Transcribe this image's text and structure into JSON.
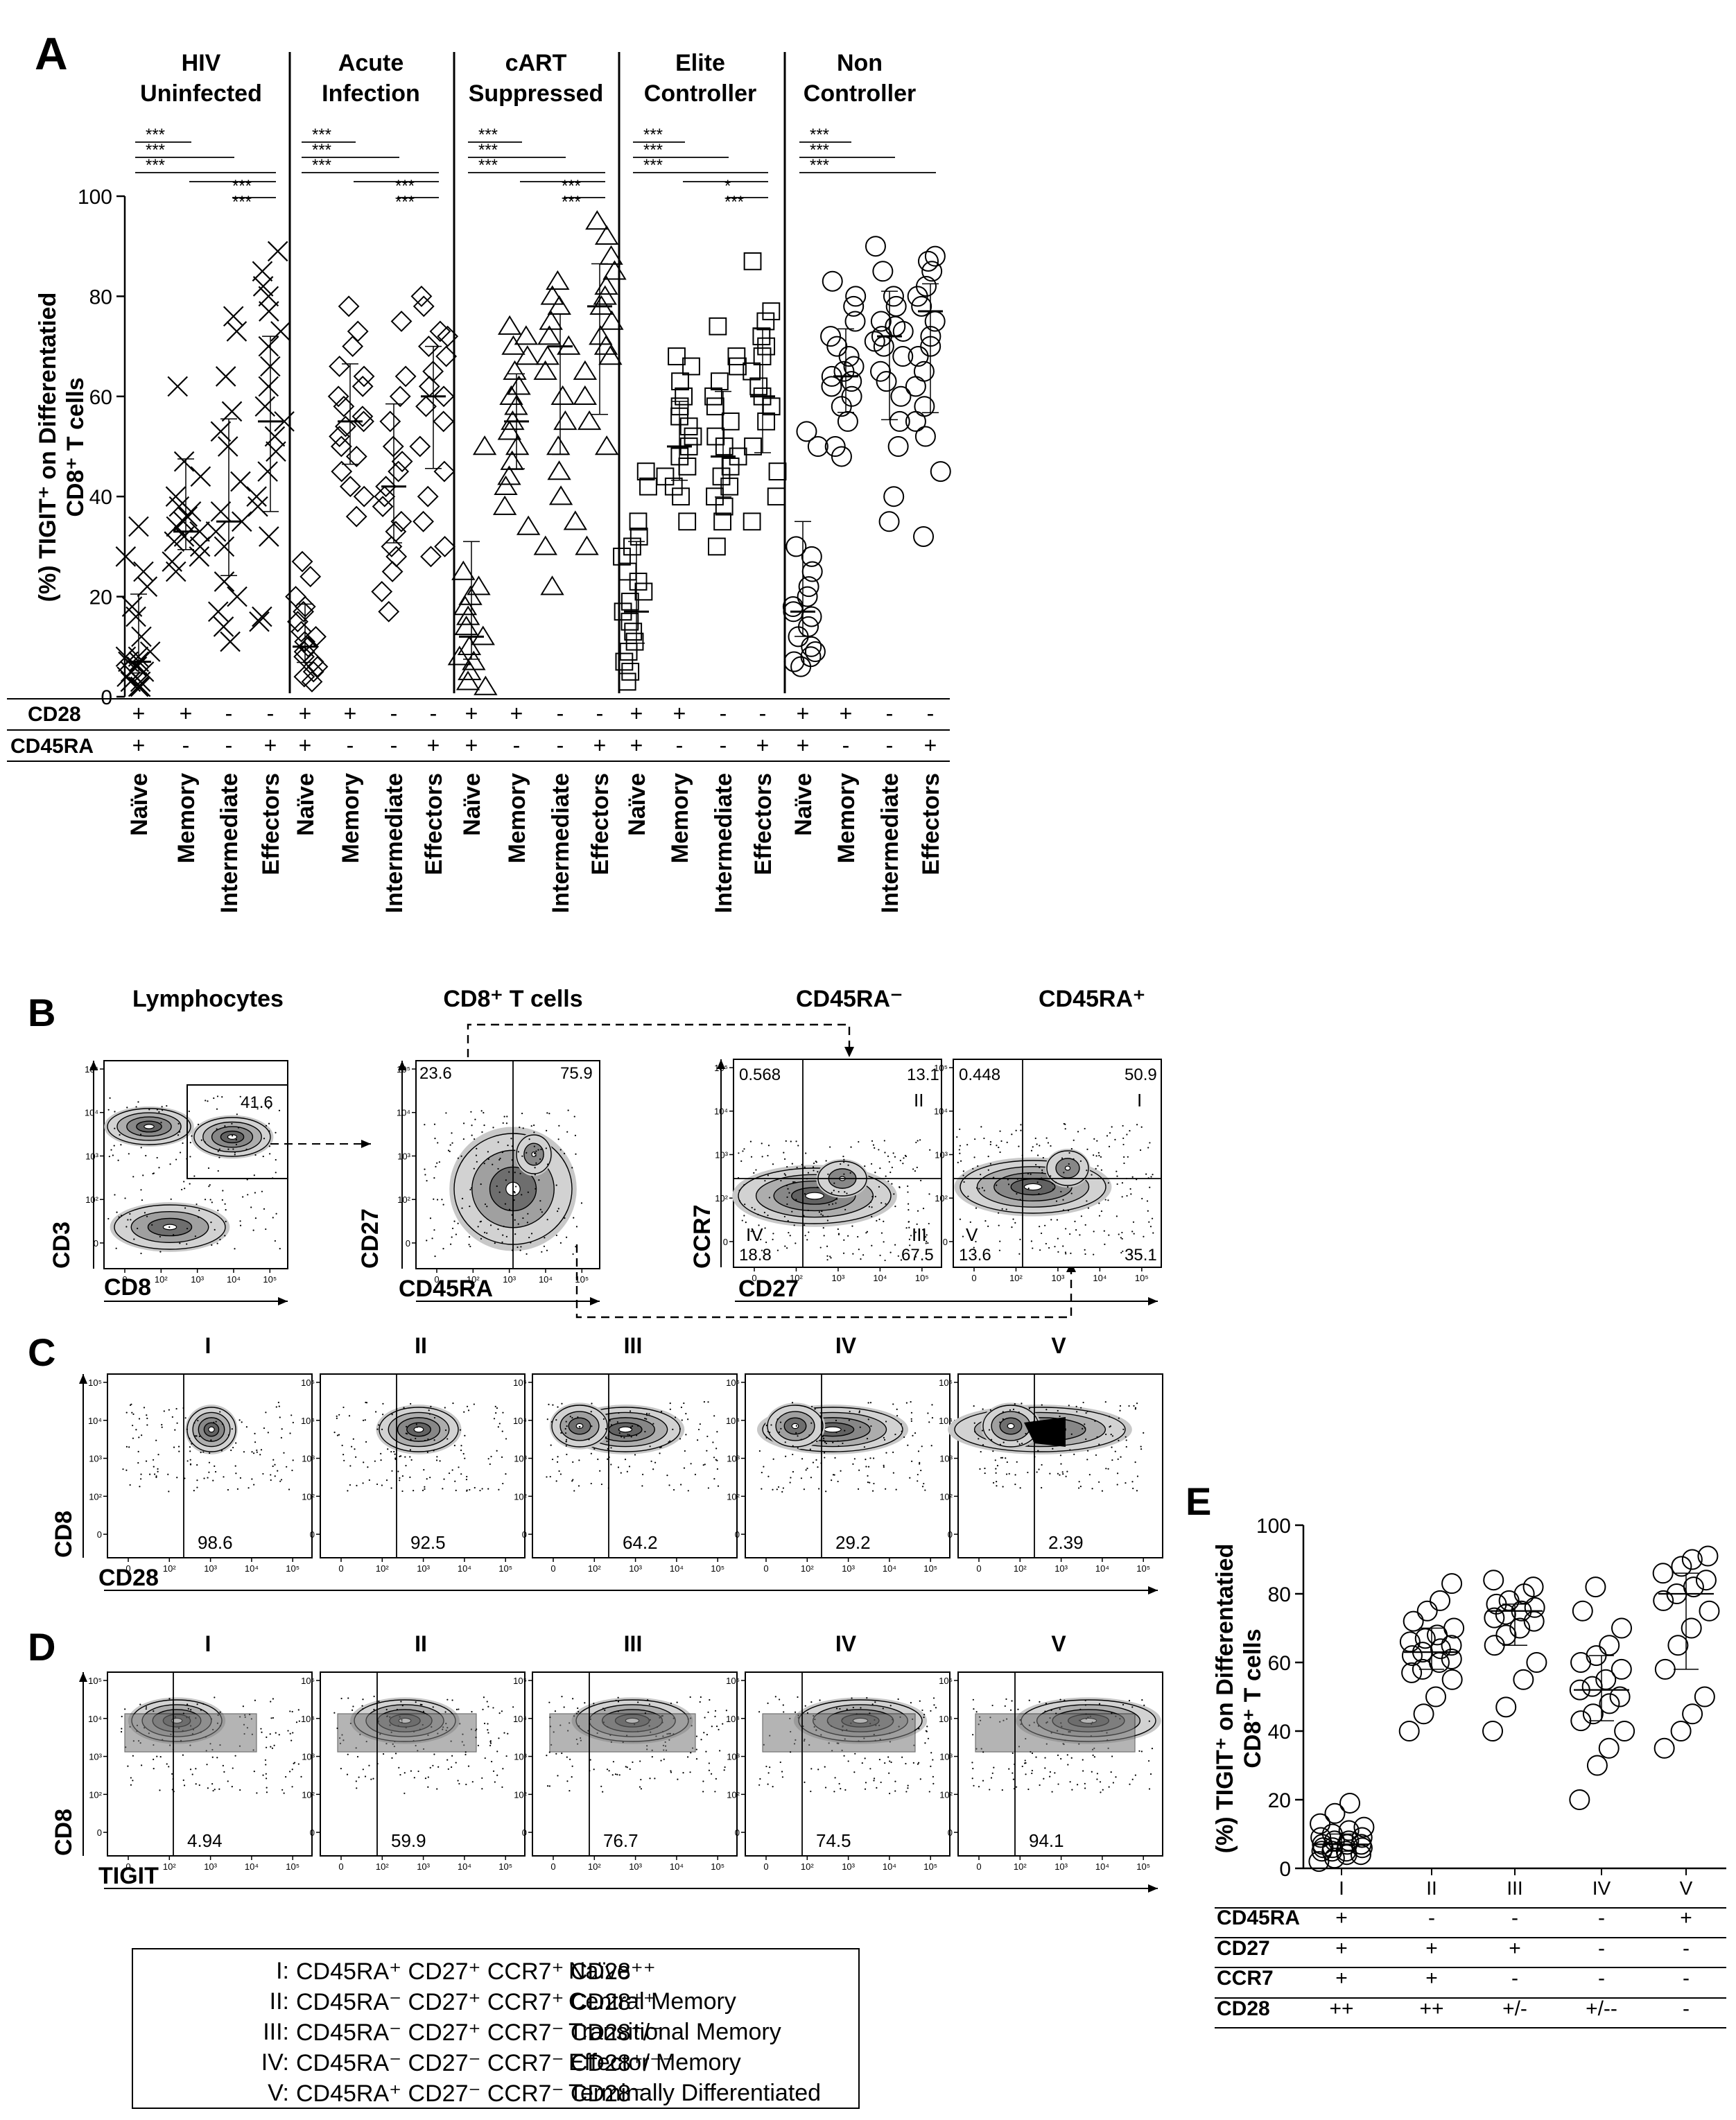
{
  "panel_labels": {
    "A": "A",
    "B": "B",
    "C": "C",
    "D": "D",
    "E": "E"
  },
  "panelA": {
    "ylabel_line1": "(%) TIGIT⁺ on Differentatied",
    "ylabel_line2": "CD8⁺ T cells",
    "yticks": [
      "0",
      "20",
      "40",
      "60",
      "80",
      "100"
    ],
    "groups": [
      {
        "title1": "HIV",
        "title2": "Uninfected",
        "marker": "x"
      },
      {
        "title1": "Acute",
        "title2": "Infection",
        "marker": "diamond"
      },
      {
        "title1": "cART",
        "title2": "Suppressed",
        "marker": "triangle"
      },
      {
        "title1": "Elite",
        "title2": "Controller",
        "marker": "square"
      },
      {
        "title1": "Non",
        "title2": "Controller",
        "marker": "circle"
      }
    ],
    "row_labels": [
      "CD28",
      "CD45RA"
    ],
    "cd28_signs": [
      "+",
      "+",
      "-",
      "-"
    ],
    "cd45ra_signs": [
      "+",
      "-",
      "-",
      "+"
    ],
    "subset_labels": [
      "Naïve",
      "Memory",
      "Intermediate",
      "Effectors"
    ],
    "sig_mark": "***",
    "sig_mark_single": "*"
  },
  "chart_data": [
    {
      "type": "scatter",
      "title": "",
      "ylabel": "(%) TIGIT⁺ on Differentatied CD8⁺ T cells",
      "ylim": [
        0,
        100
      ],
      "categories": [
        "Naïve",
        "Memory",
        "Intermediate",
        "Effectors"
      ],
      "series": [
        {
          "name": "HIV Uninfected",
          "medians": [
            7,
            33,
            35,
            55
          ],
          "values": [
            [
              2,
              3,
              4,
              5,
              6,
              7,
              8,
              9,
              12,
              16,
              18,
              22,
              25,
              28,
              34,
              3,
              5,
              7,
              2,
              8
            ],
            [
              25,
              27,
              28,
              30,
              31,
              32,
              33,
              34,
              35,
              36,
              37,
              38,
              40,
              44,
              47,
              62
            ],
            [
              11,
              14,
              17,
              20,
              23,
              30,
              33,
              35,
              37,
              43,
              50,
              53,
              57,
              64,
              73,
              76
            ],
            [
              15,
              16,
              32,
              38,
              40,
              45,
              49,
              52,
              55,
              58,
              62,
              66,
              70,
              73,
              77,
              80,
              82,
              85,
              89
            ]
          ]
        },
        {
          "name": "Acute Infection",
          "medians": [
            10,
            55,
            42,
            60
          ],
          "values": [
            [
              3,
              4,
              5,
              6,
              7,
              8,
              9,
              10,
              11,
              12,
              13,
              15,
              17,
              18,
              20,
              24,
              27
            ],
            [
              36,
              40,
              42,
              45,
              48,
              50,
              52,
              54,
              55,
              56,
              58,
              60,
              62,
              64,
              66,
              70,
              73,
              78
            ],
            [
              17,
              21,
              25,
              28,
              30,
              33,
              35,
              38,
              40,
              42,
              45,
              47,
              50,
              55,
              60,
              64,
              75
            ],
            [
              28,
              30,
              35,
              40,
              45,
              50,
              55,
              58,
              60,
              62,
              65,
              68,
              70,
              72,
              73,
              78,
              80
            ]
          ]
        },
        {
          "name": "cART Suppressed",
          "medians": [
            12,
            55,
            70,
            78
          ],
          "values": [
            [
              2,
              3,
              5,
              7,
              8,
              10,
              12,
              14,
              16,
              18,
              20,
              22,
              25,
              50
            ],
            [
              34,
              38,
              42,
              44,
              47,
              50,
              53,
              55,
              58,
              60,
              62,
              65,
              68,
              70,
              72,
              74
            ],
            [
              22,
              30,
              35,
              40,
              45,
              50,
              55,
              60,
              65,
              68,
              70,
              72,
              75,
              78,
              80,
              83
            ],
            [
              30,
              50,
              55,
              60,
              65,
              68,
              70,
              72,
              75,
              78,
              80,
              82,
              85,
              88,
              92,
              95
            ]
          ]
        },
        {
          "name": "Elite Controller",
          "medians": [
            17,
            50,
            48,
            60
          ],
          "values": [
            [
              3,
              5,
              7,
              9,
              11,
              13,
              15,
              17,
              19,
              21,
              23,
              25,
              28,
              30,
              32,
              35,
              42,
              45
            ],
            [
              35,
              40,
              42,
              44,
              46,
              48,
              50,
              52,
              54,
              56,
              58,
              60,
              63,
              66,
              68
            ],
            [
              30,
              35,
              38,
              40,
              42,
              44,
              46,
              48,
              50,
              52,
              55,
              58,
              60,
              63,
              66,
              68,
              74
            ],
            [
              35,
              40,
              45,
              50,
              55,
              58,
              60,
              62,
              65,
              68,
              70,
              72,
              75,
              77,
              87
            ]
          ]
        },
        {
          "name": "Non Controller",
          "medians": [
            17,
            64,
            72,
            77
          ],
          "values": [
            [
              6,
              7,
              8,
              9,
              10,
              12,
              14,
              16,
              17,
              18,
              20,
              22,
              25,
              28,
              30,
              50,
              53
            ],
            [
              48,
              50,
              55,
              58,
              60,
              62,
              63,
              64,
              65,
              66,
              68,
              70,
              72,
              75,
              78,
              80,
              83
            ],
            [
              35,
              40,
              50,
              55,
              60,
              63,
              65,
              68,
              70,
              71,
              72,
              73,
              74,
              75,
              78,
              80,
              85,
              90
            ],
            [
              32,
              45,
              52,
              55,
              58,
              62,
              65,
              68,
              70,
              72,
              75,
              78,
              80,
              82,
              85,
              87,
              88
            ]
          ]
        }
      ]
    },
    {
      "type": "scatter",
      "title": "",
      "ylabel": "(%) TIGIT⁺ on Differentatied CD8⁺ T cells",
      "ylim": [
        0,
        100
      ],
      "categories": [
        "I",
        "II",
        "III",
        "IV",
        "V"
      ],
      "medians": [
        7,
        63,
        75,
        52,
        80
      ],
      "series": [
        {
          "name": "I",
          "values": [
            2,
            3,
            4,
            4,
            5,
            5,
            5,
            6,
            6,
            6,
            7,
            7,
            7,
            8,
            8,
            9,
            9,
            10,
            11,
            12,
            13,
            16,
            19
          ]
        },
        {
          "name": "II",
          "values": [
            40,
            45,
            50,
            55,
            57,
            58,
            60,
            61,
            62,
            63,
            64,
            65,
            66,
            67,
            68,
            70,
            72,
            75,
            78,
            83
          ]
        },
        {
          "name": "III",
          "values": [
            40,
            47,
            55,
            60,
            65,
            68,
            70,
            72,
            73,
            74,
            75,
            76,
            77,
            78,
            80,
            82,
            84
          ]
        },
        {
          "name": "IV",
          "values": [
            20,
            30,
            35,
            40,
            43,
            45,
            48,
            50,
            52,
            53,
            55,
            58,
            60,
            62,
            65,
            70,
            75,
            82
          ]
        },
        {
          "name": "V",
          "values": [
            35,
            40,
            45,
            50,
            58,
            65,
            70,
            75,
            78,
            80,
            82,
            84,
            86,
            88,
            90,
            91
          ]
        }
      ]
    }
  ],
  "panelB": {
    "plot_titles": [
      "Lymphocytes",
      "CD8⁺ T cells",
      "CD45RA⁻",
      "CD45RA⁺"
    ],
    "p1": {
      "ylabel": "CD3",
      "xlabel": "CD8",
      "gate": "41.6"
    },
    "p2": {
      "ylabel": "CD27",
      "xlabel": "CD45RA",
      "q_ul": "23.6",
      "q_ur": "75.9"
    },
    "p3": {
      "ylabel": "CCR7",
      "q_ul": "0.568",
      "q_ur": "13.1",
      "q_ll": "18.8",
      "q_lr": "67.5",
      "r_ur": "II",
      "r_ll": "IV",
      "r_lr": "III"
    },
    "p4": {
      "q_ul": "0.448",
      "q_ur": "50.9",
      "q_ll": "13.6",
      "q_lr": "35.1",
      "r_ur": "I",
      "r_ll": "V"
    },
    "xlabel_shared": "CD27"
  },
  "panelC": {
    "titles": [
      "I",
      "II",
      "III",
      "IV",
      "V"
    ],
    "values": [
      "98.6",
      "92.5",
      "64.2",
      "29.2",
      "2.39"
    ],
    "ylabel": "CD8",
    "xlabel": "CD28"
  },
  "panelD": {
    "titles": [
      "I",
      "II",
      "III",
      "IV",
      "V"
    ],
    "values": [
      "4.94",
      "59.9",
      "76.7",
      "74.5",
      "94.1"
    ],
    "ylabel": "CD8",
    "xlabel": "TIGIT"
  },
  "axis_ticks": {
    "x": [
      "0",
      "10²",
      "10³",
      "10⁴",
      "10⁵"
    ],
    "y": [
      "10⁵",
      "10⁴",
      "10³",
      "10²",
      "0"
    ]
  },
  "legend": [
    {
      "id": "I:",
      "markers": "CD45RA⁺ CD27⁺ CCR7⁺ CD28⁺⁺",
      "desc": "Naïve"
    },
    {
      "id": "II:",
      "markers": "CD45RA⁻ CD27⁺ CCR7⁺ CD28⁺⁺",
      "desc": "Central Memory"
    },
    {
      "id": "III:",
      "markers": "CD45RA⁻ CD27⁺ CCR7⁻ CD28⁺/⁻",
      "desc": "Transitional Memory"
    },
    {
      "id": "IV:",
      "markers": "CD45RA⁻ CD27⁻ CCR7⁻ CD28⁺/⁻⁻",
      "desc": "Effector Memory"
    },
    {
      "id": "V:",
      "markers": "CD45RA⁺ CD27⁻ CCR7⁻ CD28⁻",
      "desc": "Terminally Differentiated"
    }
  ],
  "panelE": {
    "ylabel_line1": "(%) TIGIT⁺ on Differentatied",
    "ylabel_line2": "CD8⁺ T cells",
    "yticks": [
      "0",
      "20",
      "40",
      "60",
      "80",
      "100"
    ],
    "categories": [
      "I",
      "II",
      "III",
      "IV",
      "V"
    ],
    "rows": [
      {
        "label": "CD45RA",
        "signs": [
          "+",
          "-",
          "-",
          "-",
          "+"
        ]
      },
      {
        "label": "CD27",
        "signs": [
          "+",
          "+",
          "+",
          "-",
          "-"
        ]
      },
      {
        "label": "CCR7",
        "signs": [
          "+",
          "+",
          "-",
          "-",
          "-"
        ]
      },
      {
        "label": "CD28",
        "signs": [
          "++",
          "++",
          "+/-",
          "+/--",
          "-"
        ]
      }
    ]
  }
}
